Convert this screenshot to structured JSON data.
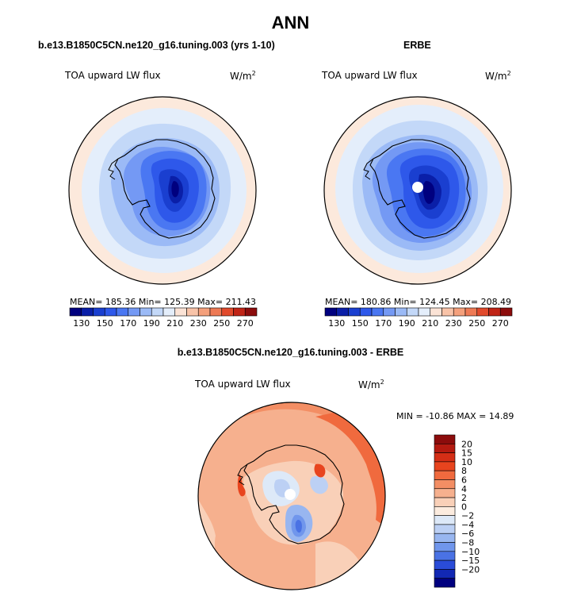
{
  "page_title": "ANN",
  "panels": [
    {
      "case": "b.e13.B1850C5CN.ne120_g16.tuning.003 (yrs 1-10)",
      "variable": "TOA upward LW flux",
      "units": "W/m",
      "units_exp": "2",
      "stats": "MEAN= 185.36   Min= 125.39   Max= 211.43"
    },
    {
      "case": "ERBE",
      "variable": "TOA upward LW flux",
      "units": "W/m",
      "units_exp": "2",
      "stats": "MEAN= 180.86   Min= 124.45   Max= 208.49"
    },
    {
      "case": "b.e13.B1850C5CN.ne120_g16.tuning.003 - ERBE",
      "variable": "TOA upward LW flux",
      "units": "W/m",
      "units_exp": "2",
      "stats": "MIN = -10.86  MAX =  14.89"
    }
  ],
  "chart_data": [
    {
      "type": "heatmap",
      "projection": "south polar stereographic",
      "title": "b.e13.B1850C5CN.ne120_g16.tuning.003 (yrs 1-10)",
      "field": "TOA upward LW flux",
      "units": "W/m2",
      "mean": 185.36,
      "min": 125.39,
      "max": 211.43,
      "colorbar": {
        "orientation": "horizontal",
        "levels": [
          120,
          130,
          140,
          150,
          160,
          170,
          180,
          190,
          200,
          210,
          220,
          230,
          240,
          250,
          260,
          270,
          280
        ],
        "tick_labels": [
          "130",
          "150",
          "170",
          "190",
          "210",
          "230",
          "250",
          "270"
        ],
        "colors": [
          "#00007f",
          "#0a1fa8",
          "#1a3fd0",
          "#2e58ea",
          "#4a77f2",
          "#7499f4",
          "#9bbaf6",
          "#c3d8f8",
          "#e4eefb",
          "#fbe3d6",
          "#f8c3a8",
          "#f4a07c",
          "#ee7a55",
          "#e14a2c",
          "#c02416",
          "#8c0c0c"
        ]
      }
    },
    {
      "type": "heatmap",
      "projection": "south polar stereographic",
      "title": "ERBE",
      "field": "TOA upward LW flux",
      "units": "W/m2",
      "mean": 180.86,
      "min": 124.45,
      "max": 208.49,
      "colorbar": {
        "orientation": "horizontal",
        "levels": [
          120,
          130,
          140,
          150,
          160,
          170,
          180,
          190,
          200,
          210,
          220,
          230,
          240,
          250,
          260,
          270,
          280
        ],
        "tick_labels": [
          "130",
          "150",
          "170",
          "190",
          "210",
          "230",
          "250",
          "270"
        ],
        "colors": [
          "#00007f",
          "#0a1fa8",
          "#1a3fd0",
          "#2e58ea",
          "#4a77f2",
          "#7499f4",
          "#9bbaf6",
          "#c3d8f8",
          "#e4eefb",
          "#fbe3d6",
          "#f8c3a8",
          "#f4a07c",
          "#ee7a55",
          "#e14a2c",
          "#c02416",
          "#8c0c0c"
        ]
      }
    },
    {
      "type": "heatmap",
      "projection": "south polar stereographic",
      "title": "b.e13.B1850C5CN.ne120_g16.tuning.003 - ERBE",
      "field": "TOA upward LW flux",
      "units": "W/m2",
      "min": -10.86,
      "max": 14.89,
      "colorbar": {
        "orientation": "vertical",
        "tick_labels": [
          "20",
          "15",
          "10",
          "8",
          "6",
          "4",
          "2",
          "0",
          "−2",
          "−4",
          "−6",
          "−8",
          "−10",
          "−15",
          "−20"
        ],
        "colors": [
          "#8c0c0c",
          "#b41a10",
          "#d42e16",
          "#e8441e",
          "#f06a3e",
          "#f38e64",
          "#f6b08e",
          "#f9d0b8",
          "#fcecdf",
          "#dde9f8",
          "#bcd0f4",
          "#98b6f0",
          "#7096ec",
          "#4a72e4",
          "#2a4cd8",
          "#1228b4",
          "#00007f"
        ]
      }
    }
  ]
}
